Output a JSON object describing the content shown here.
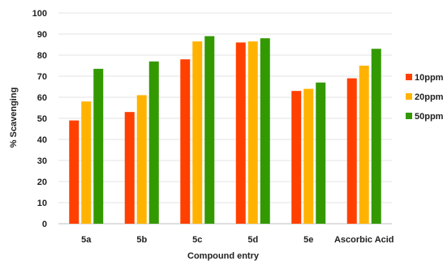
{
  "chart_data": {
    "type": "bar",
    "categories": [
      "5a",
      "5b",
      "5c",
      "5d",
      "5e",
      "Ascorbic Acid"
    ],
    "series": [
      {
        "name": "10ppm",
        "color": "#ff4000",
        "values": [
          49,
          53,
          78,
          86,
          63,
          69
        ]
      },
      {
        "name": "20ppm",
        "color": "#ffb300",
        "values": [
          58,
          61,
          86.5,
          86.5,
          64,
          75
        ]
      },
      {
        "name": "50ppm",
        "color": "#339900",
        "values": [
          73.5,
          77,
          89,
          88,
          67,
          83
        ]
      }
    ],
    "xlabel": "Compound entry",
    "ylabel": "% Scavenging",
    "ylim": [
      0,
      100
    ],
    "yticks": [
      0,
      10,
      20,
      30,
      40,
      50,
      60,
      70,
      80,
      90,
      100
    ],
    "grid": true,
    "legend_position": "right"
  }
}
